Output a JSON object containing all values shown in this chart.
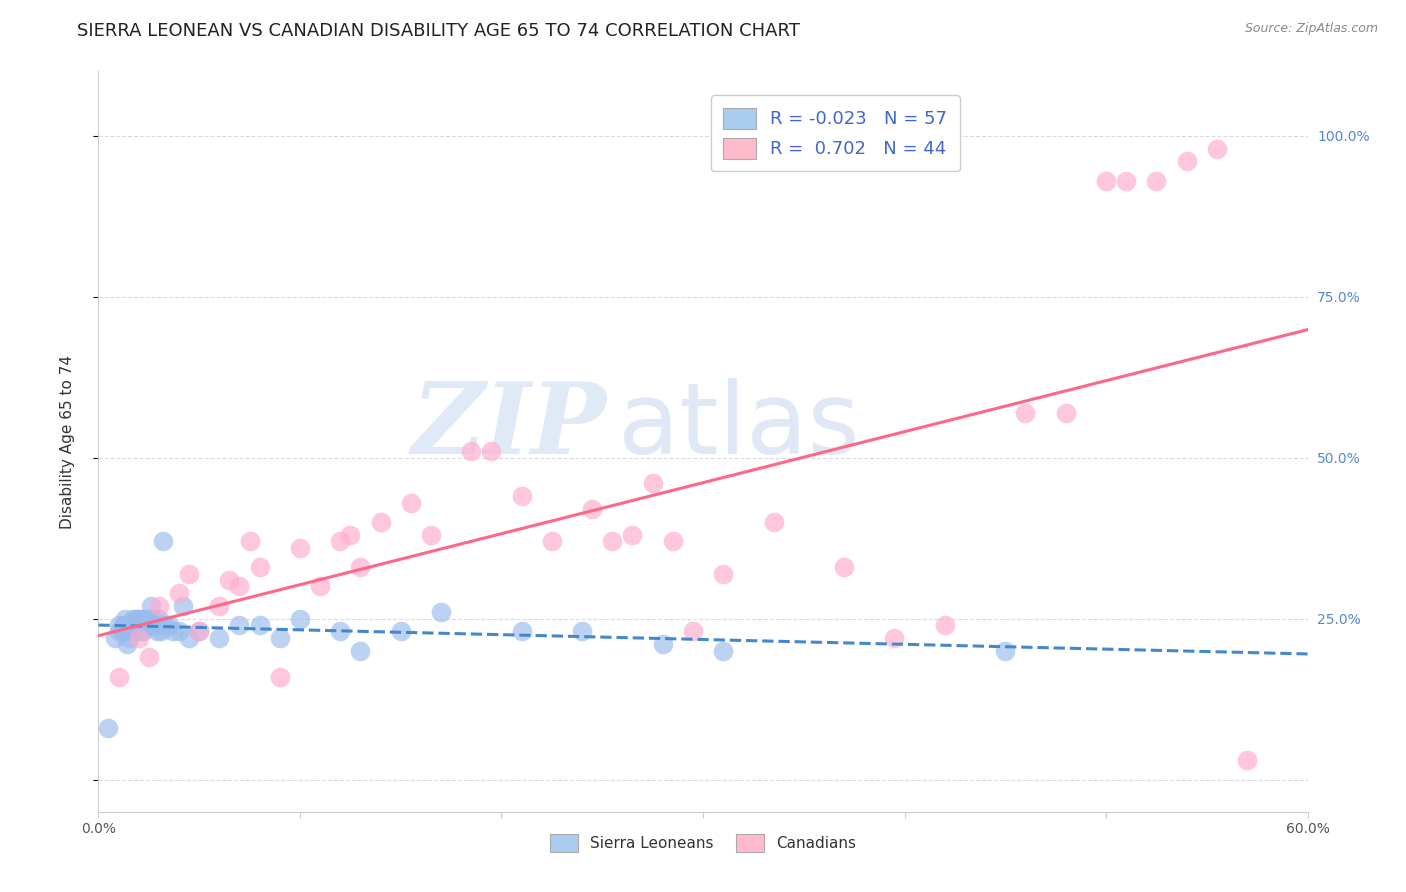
{
  "title": "SIERRA LEONEAN VS CANADIAN DISABILITY AGE 65 TO 74 CORRELATION CHART",
  "source": "Source: ZipAtlas.com",
  "ylabel": "Disability Age 65 to 74",
  "xlim": [
    0.0,
    0.6
  ],
  "ylim": [
    -0.05,
    1.1
  ],
  "xticks": [
    0.0,
    0.1,
    0.2,
    0.3,
    0.4,
    0.5,
    0.6
  ],
  "xticklabels": [
    "0.0%",
    "",
    "",
    "",
    "",
    "",
    "60.0%"
  ],
  "yticks": [
    0.0,
    0.25,
    0.5,
    0.75,
    1.0
  ],
  "yticklabels": [
    "",
    "25.0%",
    "50.0%",
    "75.0%",
    "100.0%"
  ],
  "grid_color": "#cccccc",
  "background_color": "#ffffff",
  "sierra_color": "#99bbee",
  "canadian_color": "#ffaacc",
  "sierra_R": -0.023,
  "sierra_N": 57,
  "canadian_R": 0.702,
  "canadian_N": 44,
  "watermark_zip": "ZIP",
  "watermark_atlas": "atlas",
  "sierra_line_color": "#4488cc",
  "canadian_line_color": "#ff6688",
  "legend_box_color_sierra": "#aaccee",
  "legend_box_color_canadian": "#ffbbcc",
  "sierra_points_x": [
    0.005,
    0.008,
    0.01,
    0.01,
    0.012,
    0.012,
    0.013,
    0.013,
    0.014,
    0.015,
    0.015,
    0.016,
    0.016,
    0.017,
    0.017,
    0.018,
    0.018,
    0.019,
    0.019,
    0.02,
    0.021,
    0.022,
    0.022,
    0.023,
    0.023,
    0.024,
    0.025,
    0.025,
    0.025,
    0.026,
    0.027,
    0.028,
    0.029,
    0.03,
    0.031,
    0.032,
    0.033,
    0.035,
    0.037,
    0.04,
    0.042,
    0.045,
    0.05,
    0.06,
    0.07,
    0.08,
    0.09,
    0.1,
    0.12,
    0.13,
    0.15,
    0.17,
    0.21,
    0.24,
    0.28,
    0.31,
    0.45
  ],
  "sierra_points_y": [
    0.08,
    0.22,
    0.23,
    0.24,
    0.24,
    0.23,
    0.24,
    0.25,
    0.21,
    0.22,
    0.24,
    0.23,
    0.24,
    0.23,
    0.25,
    0.24,
    0.25,
    0.24,
    0.25,
    0.25,
    0.23,
    0.23,
    0.25,
    0.24,
    0.25,
    0.24,
    0.24,
    0.25,
    0.25,
    0.27,
    0.24,
    0.25,
    0.23,
    0.25,
    0.23,
    0.37,
    0.24,
    0.24,
    0.23,
    0.23,
    0.27,
    0.22,
    0.23,
    0.22,
    0.24,
    0.24,
    0.22,
    0.25,
    0.23,
    0.2,
    0.23,
    0.26,
    0.23,
    0.23,
    0.21,
    0.2,
    0.2
  ],
  "canadian_points_x": [
    0.01,
    0.02,
    0.025,
    0.03,
    0.04,
    0.045,
    0.05,
    0.06,
    0.065,
    0.07,
    0.075,
    0.08,
    0.09,
    0.1,
    0.11,
    0.12,
    0.125,
    0.13,
    0.14,
    0.155,
    0.165,
    0.185,
    0.195,
    0.21,
    0.225,
    0.245,
    0.255,
    0.265,
    0.275,
    0.285,
    0.295,
    0.31,
    0.335,
    0.37,
    0.395,
    0.42,
    0.46,
    0.48,
    0.5,
    0.51,
    0.525,
    0.54,
    0.555,
    0.57
  ],
  "canadian_points_y": [
    0.16,
    0.22,
    0.19,
    0.27,
    0.29,
    0.32,
    0.23,
    0.27,
    0.31,
    0.3,
    0.37,
    0.33,
    0.16,
    0.36,
    0.3,
    0.37,
    0.38,
    0.33,
    0.4,
    0.43,
    0.38,
    0.51,
    0.51,
    0.44,
    0.37,
    0.42,
    0.37,
    0.38,
    0.46,
    0.37,
    0.23,
    0.32,
    0.4,
    0.33,
    0.22,
    0.24,
    0.57,
    0.57,
    0.93,
    0.93,
    0.93,
    0.96,
    0.98,
    0.03
  ],
  "title_fontsize": 13,
  "axis_label_fontsize": 11,
  "tick_fontsize": 10,
  "legend_fontsize": 13,
  "legend_text_color": "#4466cc",
  "legend_r_neg_color": "#ee4466",
  "legend_r_pos_color": "#4466cc"
}
